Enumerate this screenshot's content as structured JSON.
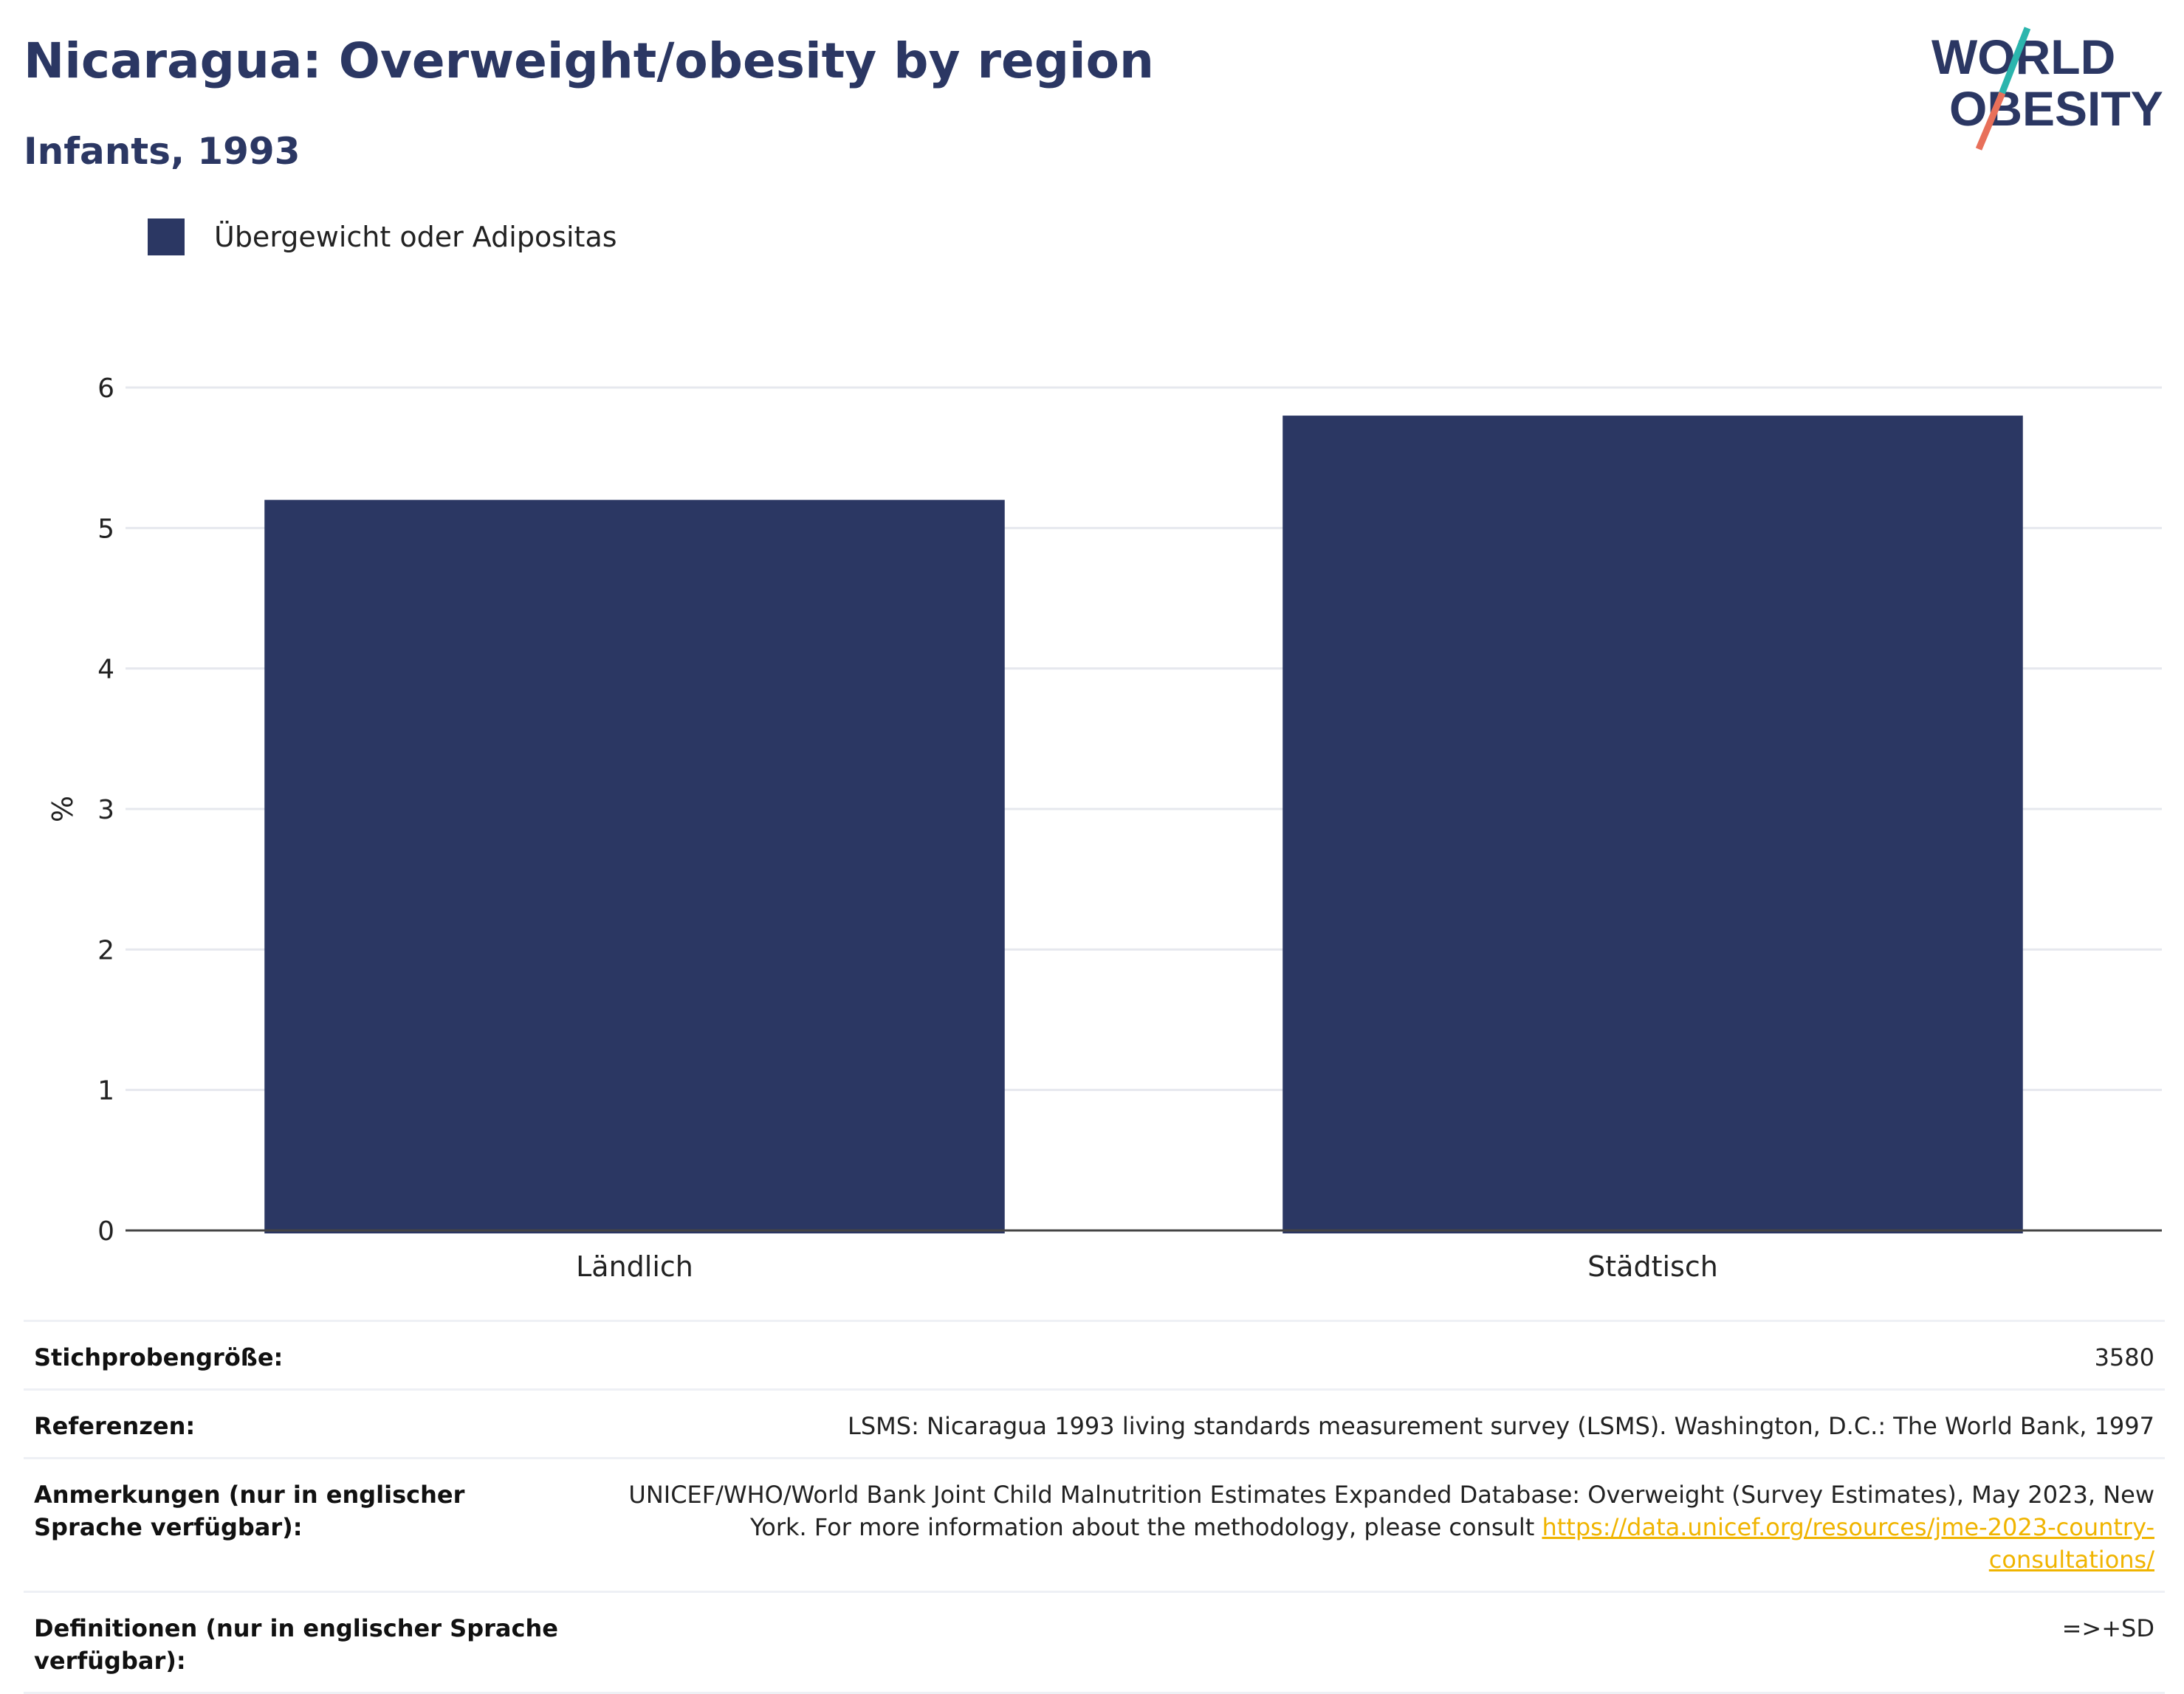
{
  "header": {
    "title": "Nicaragua: Overweight/obesity by region",
    "subtitle": "Infants, 1993"
  },
  "logo": {
    "line1": "WORLD",
    "line2": "OBESITY"
  },
  "colors": {
    "bar": "#2b3763",
    "title": "#2b3763",
    "link": "#f0b400",
    "logo_teal": "#2bb5ad",
    "logo_coral": "#e8705a"
  },
  "chart_data": {
    "type": "bar",
    "categories": [
      "Ländlich",
      "Städtisch"
    ],
    "series": [
      {
        "name": "Übergewicht oder Adipositas",
        "values": [
          5.2,
          5.8
        ]
      }
    ],
    "ylabel": "%",
    "yticks": [
      0,
      1,
      2,
      3,
      4,
      5,
      6
    ],
    "ylim": [
      0,
      6.2
    ],
    "grid": true,
    "legend": "top-left"
  },
  "footer": {
    "rows": [
      {
        "label": "Stichprobengröße:",
        "value": "3580"
      },
      {
        "label": "Referenzen:",
        "value": "LSMS: Nicaragua 1993 living standards measurement survey (LSMS). Washington, D.C.: The World Bank, 1997"
      },
      {
        "label": "Anmerkungen (nur in englischer Sprache verfügbar):",
        "value": "UNICEF/WHO/World Bank Joint Child Malnutrition Estimates Expanded Database: Overweight (Survey Estimates), May 2023, New York. For more information about the methodology, please consult ",
        "link": "https://data.unicef.org/resources/jme-2023-country-consultations/"
      },
      {
        "label": "Definitionen (nur in englischer Sprache verfügbar):",
        "value": "=>+SD"
      }
    ]
  }
}
